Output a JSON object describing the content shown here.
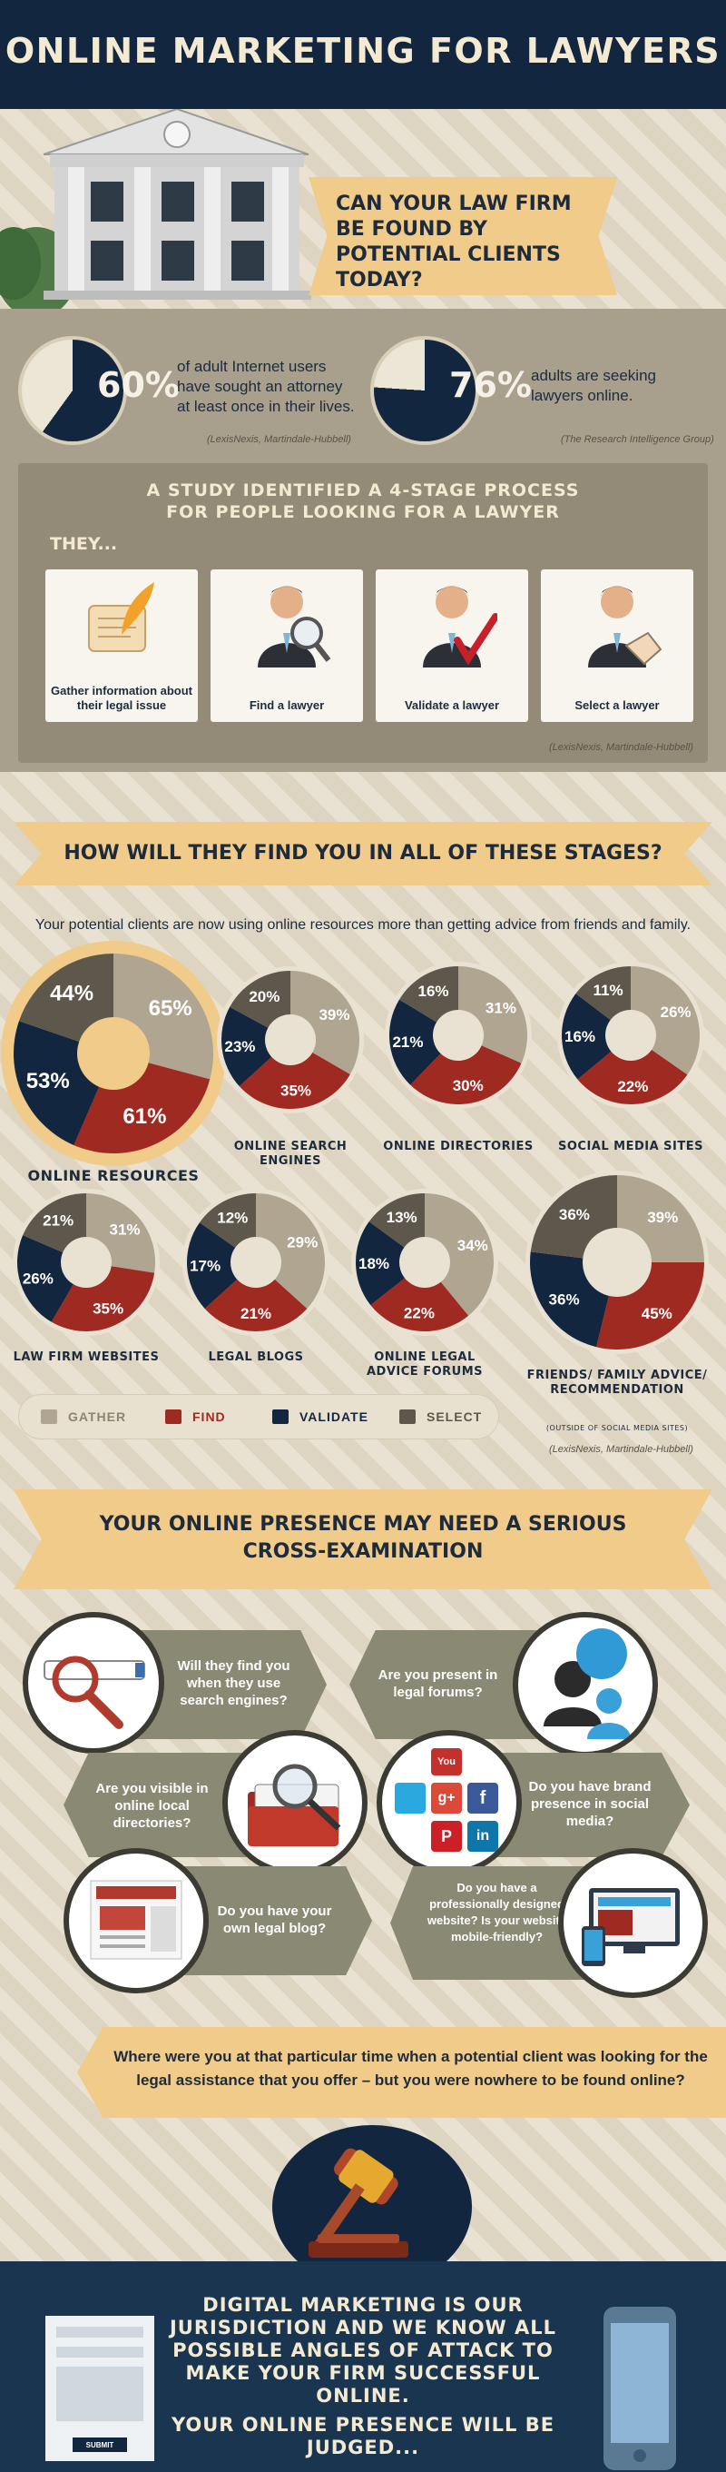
{
  "header": {
    "title": "ONLINE MARKETING FOR LAWYERS"
  },
  "hero": {
    "question": "CAN YOUR LAW FIRM BE FOUND BY POTENTIAL CLIENTS TODAY?"
  },
  "stats": [
    {
      "percent": "60%",
      "value": 60,
      "text": "of adult Internet users have sought an attorney at least once in their lives.",
      "source": "(LexisNexis, Martindale-Hubbell)"
    },
    {
      "percent": "76%",
      "value": 76,
      "text": "adults are seeking lawyers online.",
      "source": "(The Research Intelligence Group)"
    }
  ],
  "study": {
    "title_line1": "A STUDY IDENTIFIED A 4-STAGE PROCESS",
    "title_line2": "FOR PEOPLE LOOKING FOR A LAWYER",
    "they": "THEY...",
    "stages": [
      "Gather information about their legal issue",
      "Find a lawyer",
      "Validate a lawyer",
      "Select a lawyer"
    ],
    "source": "(LexisNexis, Martindale-Hubbell)"
  },
  "section2": {
    "banner": "HOW WILL THEY FIND YOU IN ALL OF THESE STAGES?",
    "subtitle": "Your potential clients are now using online resources more than getting advice from friends and family.",
    "source": "(LexisNexis, Martindale-Hubbell)"
  },
  "colors": {
    "gather": "#b0a590",
    "find": "#9e2a22",
    "validate": "#13263f",
    "select": "#5d584b",
    "accent": "#f0cb8a",
    "navy": "#13263f"
  },
  "chart_data": {
    "type": "pie",
    "title": "HOW WILL THEY FIND YOU IN ALL OF THESE STAGES?",
    "categories": [
      "GATHER",
      "FIND",
      "VALIDATE",
      "SELECT"
    ],
    "series": [
      {
        "name": "ONLINE RESOURCES",
        "values": [
          65,
          61,
          53,
          44
        ]
      },
      {
        "name": "ONLINE SEARCH ENGINES",
        "values": [
          39,
          35,
          23,
          20
        ]
      },
      {
        "name": "ONLINE DIRECTORIES",
        "values": [
          31,
          30,
          21,
          16
        ]
      },
      {
        "name": "SOCIAL MEDIA SITES",
        "values": [
          26,
          22,
          16,
          11
        ]
      },
      {
        "name": "LAW FIRM WEBSITES",
        "values": [
          31,
          35,
          26,
          21
        ]
      },
      {
        "name": "LEGAL BLOGS",
        "values": [
          29,
          21,
          17,
          12
        ]
      },
      {
        "name": "ONLINE LEGAL ADVICE FORUMS",
        "values": [
          34,
          22,
          18,
          13
        ]
      },
      {
        "name": "FRIENDS/ FAMILY ADVICE/ RECOMMENDATION",
        "values": [
          39,
          45,
          36,
          36
        ]
      }
    ],
    "note": "(OUTSIDE OF SOCIAL MEDIA SITES)"
  },
  "legend": [
    "GATHER",
    "FIND",
    "VALIDATE",
    "SELECT"
  ],
  "section3": {
    "banner_line1": "YOUR ONLINE PRESENCE MAY NEED A SERIOUS",
    "banner_line2": "CROSS-EXAMINATION",
    "questions": [
      "Will they find you when they use search engines?",
      "Are you present in legal forums?",
      "Are you visible in online local directories?",
      "Do you have brand presence in social media?",
      "Do you have your own legal blog?",
      "Do you have a professionally designed website? Is your website mobile-friendly?"
    ],
    "social_labels": [
      "You Tube",
      "g+",
      "f",
      "in",
      "P"
    ],
    "where": "Where were you at that particular time when a potential client was looking for the legal assistance that you offer – but you were nowhere to be found online?"
  },
  "footer": {
    "line1": "DIGITAL MARKETING IS OUR JURISDICTION AND WE KNOW ALL POSSIBLE ANGLES OF ATTACK TO MAKE YOUR FIRM SUCCESSFUL ONLINE.",
    "line2": "YOUR ONLINE PRESENCE WILL BE JUDGED...",
    "submit": "SUBMIT"
  }
}
